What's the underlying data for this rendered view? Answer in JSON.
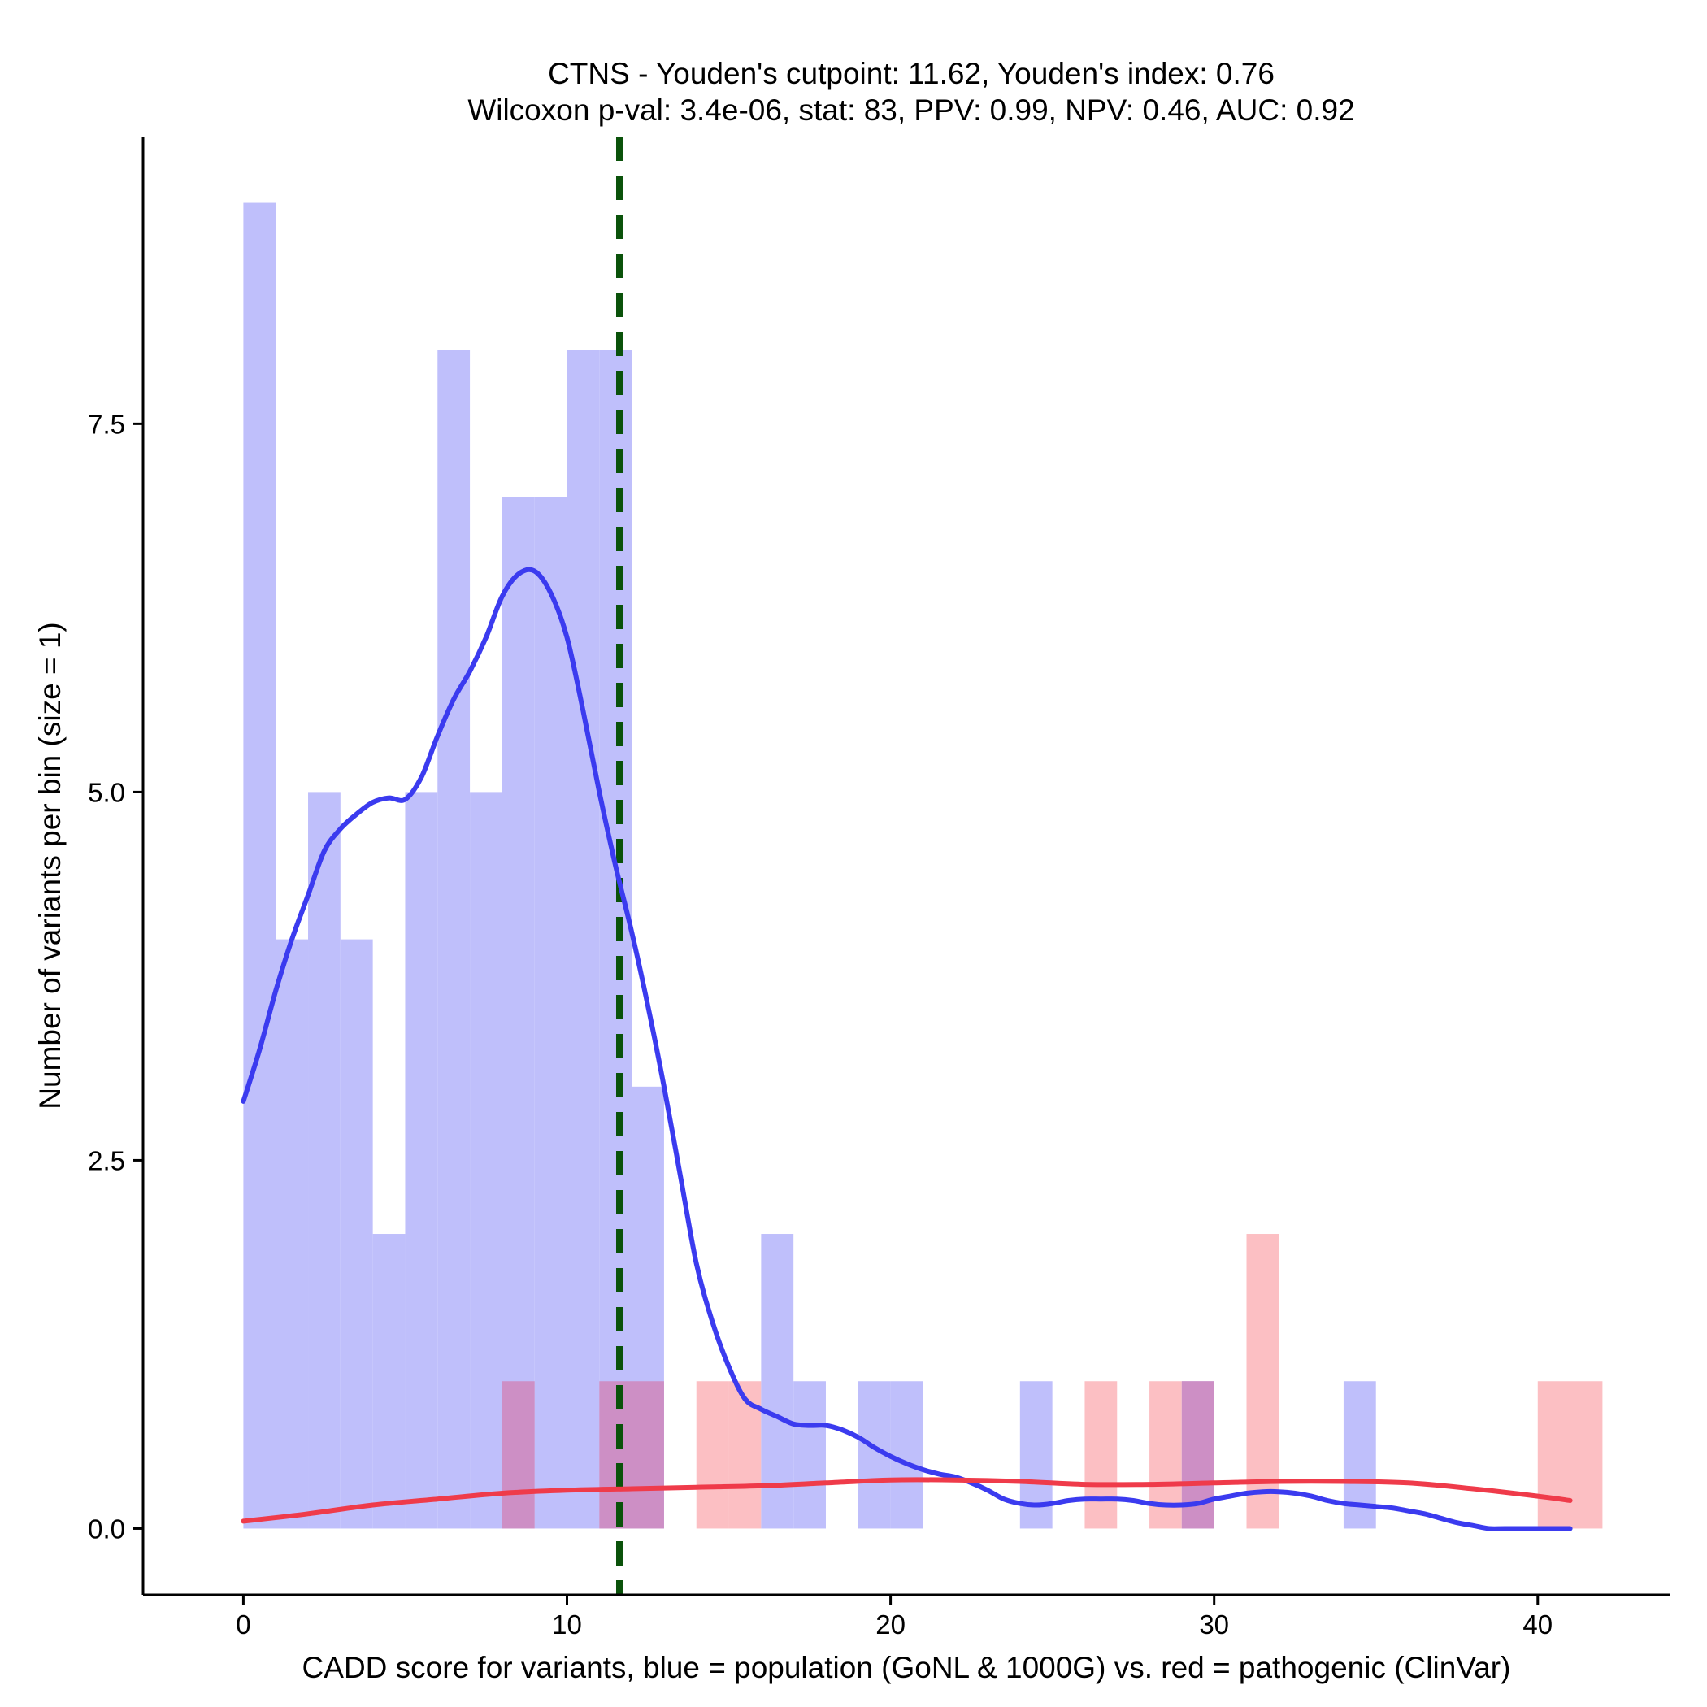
{
  "chart_data": {
    "type": "bar",
    "title_line1": "CTNS - Youden's cutpoint: 11.62, Youden's index: 0.76",
    "title_line2": "Wilcoxon p-val: 3.4e-06, stat: 83, PPV: 0.99, NPV: 0.46, AUC: 0.92",
    "xlabel": "CADD score for variants, blue = population (GoNL & 1000G) vs. red = pathogenic (ClinVar)",
    "ylabel": "Number of variants per bin (size = 1)",
    "xlim": [
      -3.1,
      44.1
    ],
    "ylim": [
      -0.45,
      9.45
    ],
    "x_ticks": [
      0,
      10,
      20,
      30,
      40
    ],
    "x_tick_labels": [
      "0",
      "10",
      "20",
      "30",
      "40"
    ],
    "y_ticks": [
      0,
      2.5,
      5,
      7.5
    ],
    "y_tick_labels": [
      "0.0",
      "2.5",
      "5.0",
      "7.5"
    ],
    "bin_size": 1,
    "cutpoint": 11.62,
    "colors": {
      "population_bar": "#bfbffb",
      "pathogenic_bar": "#fcbfc3",
      "overlap_bar": "#cd8fc5",
      "population_line": "#3b3bef",
      "pathogenic_line": "#ef3b4a",
      "cutpoint_line": "#0a520a"
    },
    "series": [
      {
        "name": "population (GoNL & 1000G)",
        "bins": [
          [
            0,
            9
          ],
          [
            1,
            4
          ],
          [
            2,
            5
          ],
          [
            3,
            4
          ],
          [
            4,
            2
          ],
          [
            5,
            5
          ],
          [
            6,
            8
          ],
          [
            7,
            5
          ],
          [
            8,
            7
          ],
          [
            9,
            7
          ],
          [
            10,
            8
          ],
          [
            11,
            8
          ],
          [
            12,
            3
          ],
          [
            16,
            2
          ],
          [
            17,
            1
          ],
          [
            19,
            1
          ],
          [
            20,
            1
          ],
          [
            24,
            1
          ],
          [
            29,
            1
          ],
          [
            34,
            1
          ]
        ]
      },
      {
        "name": "pathogenic (ClinVar)",
        "bins": [
          [
            8,
            1
          ],
          [
            11,
            1
          ],
          [
            12,
            1
          ],
          [
            14,
            1
          ],
          [
            15,
            1
          ],
          [
            26,
            1
          ],
          [
            28,
            1
          ],
          [
            29,
            1
          ],
          [
            31,
            2
          ],
          [
            40,
            1
          ],
          [
            41,
            1
          ]
        ]
      }
    ],
    "density_population": [
      [
        0,
        2.9
      ],
      [
        0.5,
        3.25
      ],
      [
        1,
        3.65
      ],
      [
        1.5,
        4.0
      ],
      [
        2,
        4.3
      ],
      [
        2.5,
        4.6
      ],
      [
        3,
        4.75
      ],
      [
        3.5,
        4.85
      ],
      [
        4,
        4.93
      ],
      [
        4.5,
        4.96
      ],
      [
        5,
        4.95
      ],
      [
        5.5,
        5.1
      ],
      [
        6,
        5.38
      ],
      [
        6.5,
        5.63
      ],
      [
        7,
        5.82
      ],
      [
        7.5,
        6.05
      ],
      [
        8,
        6.33
      ],
      [
        8.5,
        6.48
      ],
      [
        9,
        6.5
      ],
      [
        9.5,
        6.35
      ],
      [
        10,
        6.05
      ],
      [
        10.5,
        5.55
      ],
      [
        11,
        5.0
      ],
      [
        11.5,
        4.5
      ],
      [
        12,
        4.05
      ],
      [
        12.5,
        3.55
      ],
      [
        13,
        3.0
      ],
      [
        13.5,
        2.4
      ],
      [
        14,
        1.8
      ],
      [
        14.5,
        1.4
      ],
      [
        15,
        1.1
      ],
      [
        15.5,
        0.88
      ],
      [
        16,
        0.81
      ],
      [
        16.5,
        0.76
      ],
      [
        17,
        0.71
      ],
      [
        17.5,
        0.7
      ],
      [
        18,
        0.7
      ],
      [
        18.5,
        0.67
      ],
      [
        19,
        0.62
      ],
      [
        19.5,
        0.55
      ],
      [
        20,
        0.49
      ],
      [
        20.5,
        0.44
      ],
      [
        21,
        0.4
      ],
      [
        21.5,
        0.37
      ],
      [
        22,
        0.35
      ],
      [
        22.5,
        0.31
      ],
      [
        23,
        0.26
      ],
      [
        23.5,
        0.2
      ],
      [
        24,
        0.17
      ],
      [
        24.5,
        0.16
      ],
      [
        25,
        0.17
      ],
      [
        25.5,
        0.19
      ],
      [
        26,
        0.2
      ],
      [
        26.5,
        0.2
      ],
      [
        27,
        0.2
      ],
      [
        27.5,
        0.19
      ],
      [
        28,
        0.17
      ],
      [
        28.5,
        0.16
      ],
      [
        29,
        0.16
      ],
      [
        29.5,
        0.17
      ],
      [
        30,
        0.2
      ],
      [
        30.5,
        0.22
      ],
      [
        31,
        0.24
      ],
      [
        31.5,
        0.25
      ],
      [
        32,
        0.25
      ],
      [
        32.5,
        0.24
      ],
      [
        33,
        0.22
      ],
      [
        33.5,
        0.19
      ],
      [
        34,
        0.17
      ],
      [
        34.5,
        0.16
      ],
      [
        35,
        0.15
      ],
      [
        35.5,
        0.14
      ],
      [
        36,
        0.12
      ],
      [
        36.5,
        0.1
      ],
      [
        37,
        0.07
      ],
      [
        37.5,
        0.04
      ],
      [
        38,
        0.02
      ],
      [
        38.5,
        0.0
      ],
      [
        39,
        0.0
      ],
      [
        40,
        0.0
      ],
      [
        41,
        0.0
      ]
    ],
    "density_pathogenic": [
      [
        0,
        0.05
      ],
      [
        2,
        0.1
      ],
      [
        4,
        0.16
      ],
      [
        6,
        0.2
      ],
      [
        8,
        0.24
      ],
      [
        10,
        0.26
      ],
      [
        12,
        0.27
      ],
      [
        14,
        0.28
      ],
      [
        16,
        0.29
      ],
      [
        18,
        0.31
      ],
      [
        20,
        0.33
      ],
      [
        22,
        0.33
      ],
      [
        24,
        0.32
      ],
      [
        26,
        0.3
      ],
      [
        28,
        0.3
      ],
      [
        30,
        0.31
      ],
      [
        32,
        0.32
      ],
      [
        34,
        0.32
      ],
      [
        36,
        0.31
      ],
      [
        38,
        0.27
      ],
      [
        40,
        0.22
      ],
      [
        41,
        0.19
      ]
    ]
  }
}
